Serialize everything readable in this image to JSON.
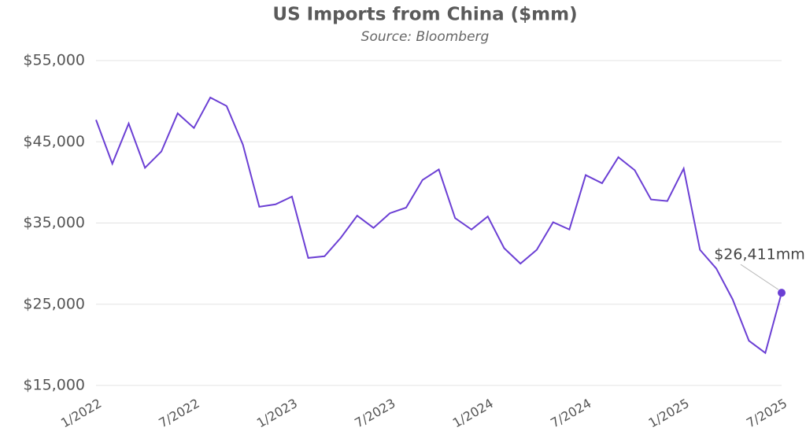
{
  "chart_data": {
    "type": "line",
    "title": "US Imports from China ($mm)",
    "subtitle": "Source: Bloomberg",
    "categories": [
      "1/2022",
      null,
      null,
      null,
      null,
      null,
      "7/2022",
      null,
      null,
      null,
      null,
      null,
      "1/2023",
      null,
      null,
      null,
      null,
      null,
      "7/2023",
      null,
      null,
      null,
      null,
      null,
      "1/2024",
      null,
      null,
      null,
      null,
      null,
      "7/2024",
      null,
      null,
      null,
      null,
      null,
      "1/2025",
      null,
      null,
      null,
      null,
      null,
      "7/2025"
    ],
    "values": [
      47700,
      42300,
      47250,
      41800,
      43800,
      48500,
      46700,
      50450,
      49400,
      44650,
      37000,
      37300,
      38250,
      30700,
      30900,
      33200,
      35900,
      34400,
      36200,
      36900,
      40300,
      41600,
      35600,
      34200,
      35800,
      31900,
      30000,
      31700,
      35100,
      34200,
      40900,
      39900,
      43100,
      41500,
      37900,
      37700,
      41700,
      31700,
      29400,
      25600,
      20500,
      19000,
      26411
    ],
    "value_labels": [
      null,
      null,
      null,
      null,
      null,
      null,
      null,
      null,
      null,
      null,
      null,
      null,
      null,
      null,
      null,
      null,
      null,
      null,
      null,
      null,
      null,
      null,
      null,
      null,
      null,
      null,
      null,
      null,
      null,
      null,
      null,
      null,
      null,
      null,
      null,
      null,
      null,
      null,
      null,
      null,
      null,
      null,
      "$26,411mm"
    ],
    "color": "#6b3fd4",
    "ylim": [
      15000,
      55000
    ],
    "yticks": [
      {
        "value": 15000,
        "label": "$15,000"
      },
      {
        "value": 25000,
        "label": "$25,000"
      },
      {
        "value": 35000,
        "label": "$35,000"
      },
      {
        "value": 45000,
        "label": "$45,000"
      },
      {
        "value": 55000,
        "label": "$55,000"
      }
    ],
    "grid": true
  }
}
